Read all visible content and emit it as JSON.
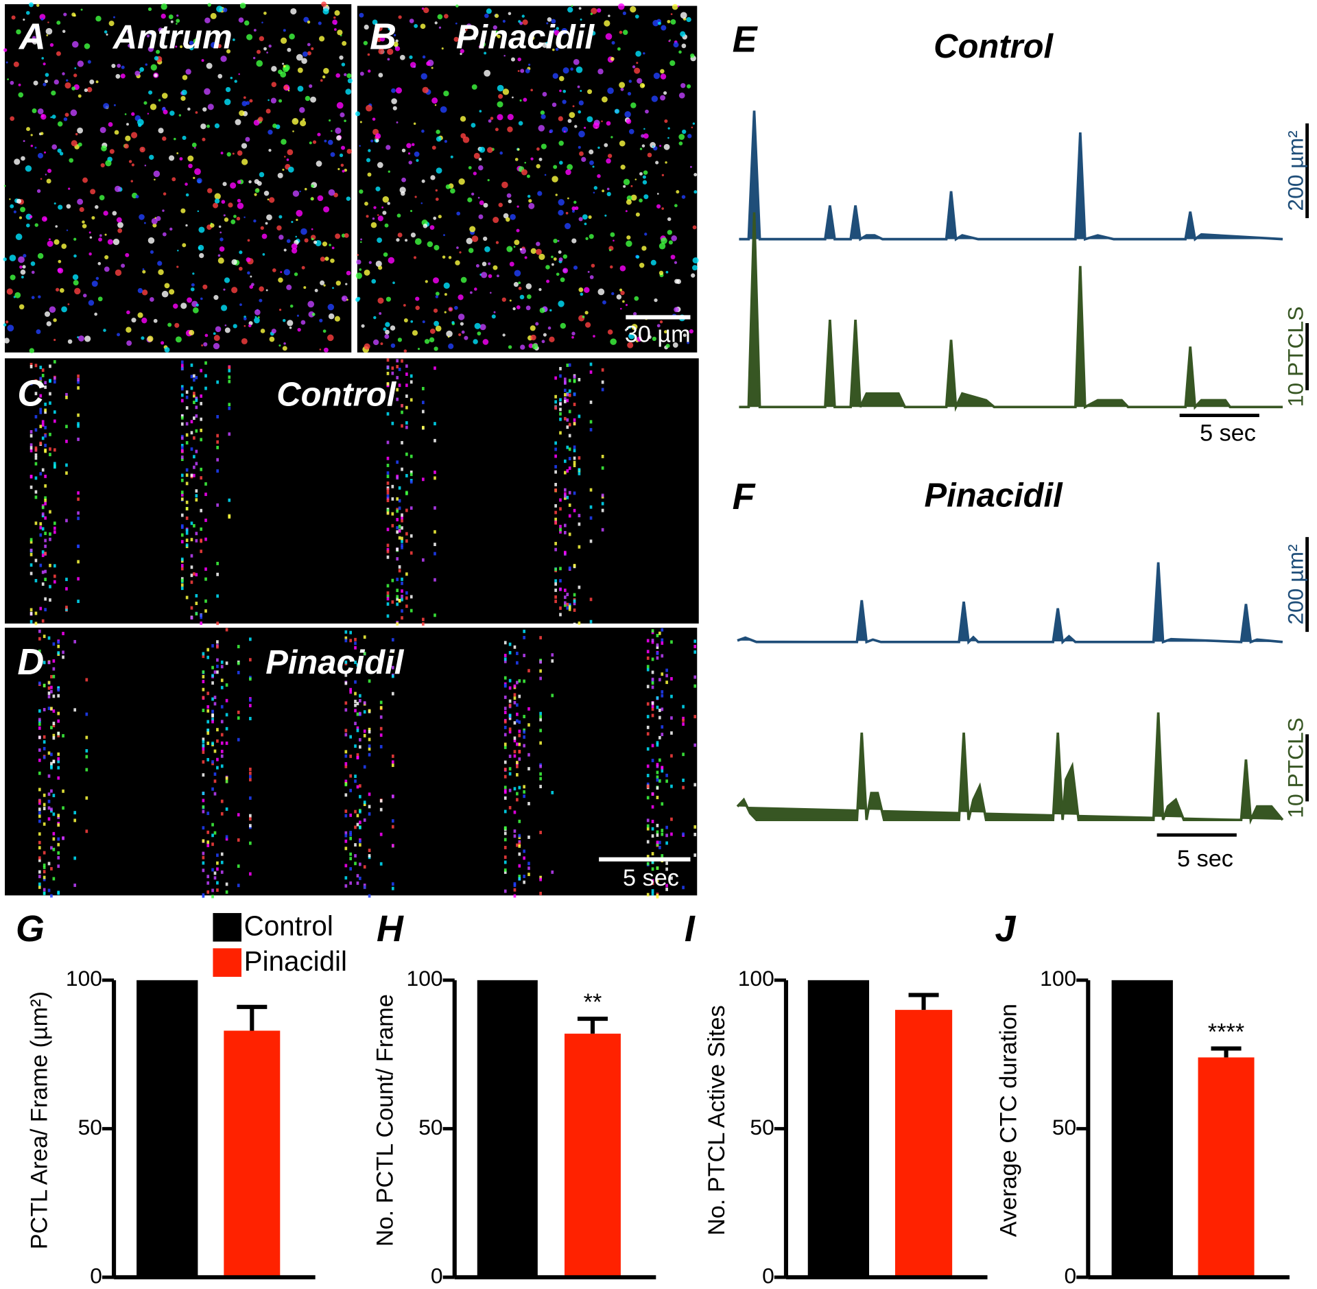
{
  "images": [
    {
      "panel": "A",
      "title": "Antrum"
    },
    {
      "panel": "B",
      "title": "Pinacidil",
      "scalebar": "30 µm"
    },
    {
      "panel": "C",
      "title": "Control"
    },
    {
      "panel": "D",
      "title": "Pinacidil",
      "scalebar": "5 sec"
    }
  ],
  "chart_data": [
    {
      "type": "line",
      "panel": "E",
      "title": "Control",
      "color": "#1f4e79",
      "x": [
        0,
        0.6,
        0.95,
        1.3,
        5.4,
        5.7,
        6.0,
        7.0,
        7.3,
        7.6,
        8.0,
        8.5,
        9.0,
        13.0,
        13.3,
        13.6,
        14.0,
        15.0,
        21.1,
        21.4,
        21.7,
        22.5,
        23.5,
        28.0,
        28.3,
        28.6,
        29.0,
        34.1
      ],
      "values": [
        0,
        0,
        271,
        0,
        0,
        71,
        0,
        0,
        71,
        0,
        8,
        8,
        0,
        0,
        101,
        0,
        8,
        0,
        0,
        225,
        0,
        8,
        0,
        0,
        58,
        0,
        10,
        0
      ],
      "scale_y": {
        "value": 200,
        "label": "200 µm²"
      }
    },
    {
      "type": "line",
      "color": "#375623",
      "x": [
        0,
        0.6,
        0.95,
        1.3,
        5.4,
        5.7,
        6.0,
        7.0,
        7.3,
        7.6,
        8.0,
        9.0,
        10.0,
        10.4,
        13.0,
        13.3,
        13.6,
        14.0,
        15.5,
        16.0,
        21.1,
        21.4,
        21.7,
        22.5,
        24.0,
        24.4,
        28.0,
        28.3,
        28.6,
        29.0,
        30.5,
        30.8,
        34.1
      ],
      "values": [
        0,
        0,
        29,
        0,
        0,
        13,
        0,
        0,
        13,
        0,
        2,
        2,
        2,
        0,
        0,
        10,
        0,
        2,
        1,
        0,
        0,
        21,
        0,
        1,
        1,
        0,
        0,
        9,
        0,
        1,
        1,
        0,
        0
      ],
      "scale_y": {
        "value": 10,
        "label": "10 PTCLS"
      },
      "scale_x": {
        "value": 5,
        "label": "5 sec"
      }
    },
    {
      "type": "line",
      "panel": "F",
      "title": "Pinacidil",
      "color": "#1f4e79",
      "x": [
        0,
        0.5,
        1.2,
        7.5,
        7.8,
        8.1,
        8.5,
        9.0,
        13.9,
        14.2,
        14.5,
        14.8,
        15.1,
        19.8,
        20.1,
        20.4,
        20.8,
        21.2,
        26.1,
        26.4,
        26.7,
        27.2,
        31.6,
        31.9,
        32.2,
        32.6,
        34.2
      ],
      "values": [
        3,
        9,
        0,
        0,
        88,
        0,
        5,
        0,
        0,
        85,
        0,
        10,
        0,
        0,
        71,
        0,
        12,
        0,
        0,
        168,
        0,
        6,
        0,
        80,
        0,
        5,
        0
      ],
      "scale_y": {
        "value": 200,
        "label": "200 µm²"
      }
    },
    {
      "type": "line",
      "color": "#375623",
      "x": [
        0,
        0.4,
        0.8,
        1.2,
        7.5,
        7.8,
        8.1,
        8.4,
        8.8,
        9.2,
        13.9,
        14.2,
        14.5,
        14.8,
        15.2,
        15.6,
        19.8,
        20.1,
        20.4,
        20.6,
        21.0,
        21.4,
        26.1,
        26.4,
        26.7,
        27.0,
        27.5,
        28.0,
        31.6,
        31.9,
        32.2,
        32.6,
        33.5,
        34.2
      ],
      "values": [
        2,
        3,
        1,
        0,
        0,
        13,
        0,
        4,
        4,
        0,
        0,
        13,
        0,
        3,
        5,
        0,
        0,
        13,
        0,
        6,
        8,
        0,
        0,
        16,
        0,
        2,
        3,
        0,
        0,
        9,
        0,
        2,
        2,
        0
      ],
      "scale_y": {
        "value": 10,
        "label": "10 PTCLS"
      },
      "scale_x": {
        "value": 5,
        "label": "5 sec"
      }
    },
    {
      "type": "bar",
      "panel": "G",
      "ylabel": "PCTL Area/ Frame (µm²)",
      "ylim": [
        0,
        100
      ],
      "yticks": [
        0,
        50,
        100
      ],
      "legend": true,
      "series": [
        {
          "name": "Control",
          "color": "#000000",
          "values": [
            100
          ]
        },
        {
          "name": "Pinacidil",
          "color": "#ff2200",
          "values": [
            83
          ],
          "errors": [
            8
          ]
        }
      ]
    },
    {
      "type": "bar",
      "panel": "H",
      "ylabel": "No. PCTL Count/ Frame",
      "ylim": [
        0,
        100
      ],
      "yticks": [
        0,
        50,
        100
      ],
      "annotation": "**",
      "series": [
        {
          "color": "#000000",
          "values": [
            100
          ]
        },
        {
          "color": "#ff2200",
          "values": [
            82
          ],
          "errors": [
            5
          ]
        }
      ]
    },
    {
      "type": "bar",
      "panel": "I",
      "ylabel": "No. PTCL Active Sites",
      "ylim": [
        0,
        100
      ],
      "yticks": [
        0,
        50,
        100
      ],
      "series": [
        {
          "color": "#000000",
          "values": [
            100
          ]
        },
        {
          "color": "#ff2200",
          "values": [
            90
          ],
          "errors": [
            5
          ]
        }
      ]
    },
    {
      "type": "bar",
      "panel": "J",
      "ylabel": "Average CTC duration",
      "ylim": [
        0,
        100
      ],
      "yticks": [
        0,
        50,
        100
      ],
      "annotation": "****",
      "series": [
        {
          "color": "#000000",
          "values": [
            100
          ]
        },
        {
          "color": "#ff2200",
          "values": [
            74
          ],
          "errors": [
            3
          ]
        }
      ]
    }
  ]
}
